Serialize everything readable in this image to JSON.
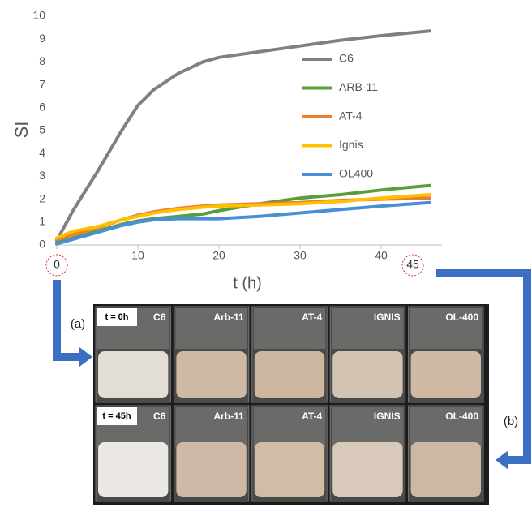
{
  "chart_data": {
    "type": "line",
    "x_label": "t (h)",
    "y_label": "SI",
    "x": [
      0,
      2,
      5,
      8,
      10,
      12,
      15,
      18,
      20,
      25,
      30,
      35,
      40,
      46
    ],
    "series": [
      {
        "name": "C6",
        "color": "#808080",
        "values": [
          0.2,
          1.5,
          3.2,
          5.0,
          6.1,
          6.8,
          7.5,
          8.0,
          8.2,
          8.45,
          8.7,
          8.95,
          9.15,
          9.35
        ]
      },
      {
        "name": "ARB-11",
        "color": "#5a9e3a",
        "values": [
          0.1,
          0.3,
          0.6,
          0.9,
          1.05,
          1.15,
          1.25,
          1.35,
          1.5,
          1.8,
          2.05,
          2.2,
          2.4,
          2.6
        ]
      },
      {
        "name": "AT-4",
        "color": "#ed7d31",
        "values": [
          0.25,
          0.45,
          0.75,
          1.1,
          1.3,
          1.45,
          1.6,
          1.7,
          1.75,
          1.8,
          1.85,
          1.95,
          2.0,
          2.05
        ]
      },
      {
        "name": "Ignis",
        "color": "#ffc000",
        "values": [
          0.3,
          0.6,
          0.8,
          1.1,
          1.25,
          1.4,
          1.55,
          1.65,
          1.7,
          1.75,
          1.8,
          1.9,
          2.05,
          2.2
        ]
      },
      {
        "name": "OL400",
        "color": "#4a8fd6",
        "values": [
          0.05,
          0.25,
          0.55,
          0.85,
          1.0,
          1.1,
          1.15,
          1.15,
          1.15,
          1.25,
          1.4,
          1.55,
          1.7,
          1.85
        ]
      }
    ],
    "xlim": [
      0,
      47.5
    ],
    "xticks": [
      0,
      10,
      20,
      30,
      40
    ],
    "ylim": [
      0,
      10
    ],
    "yticks": [
      0,
      1,
      2,
      3,
      4,
      5,
      6,
      7,
      8,
      9,
      10
    ],
    "grid": false
  },
  "figure": {
    "circled_labels": [
      "0",
      "45"
    ],
    "panel_labels": [
      "(a)",
      "(b)"
    ],
    "time_labels": [
      "t = 0h",
      "t = 45h"
    ],
    "beaker_labels": [
      [
        "C6",
        "Arb-11",
        "AT-4",
        "IGNIS",
        "OL-400"
      ],
      [
        "C6",
        "Arb-11",
        "AT-4",
        "IGNIS",
        "OL-400"
      ]
    ]
  }
}
